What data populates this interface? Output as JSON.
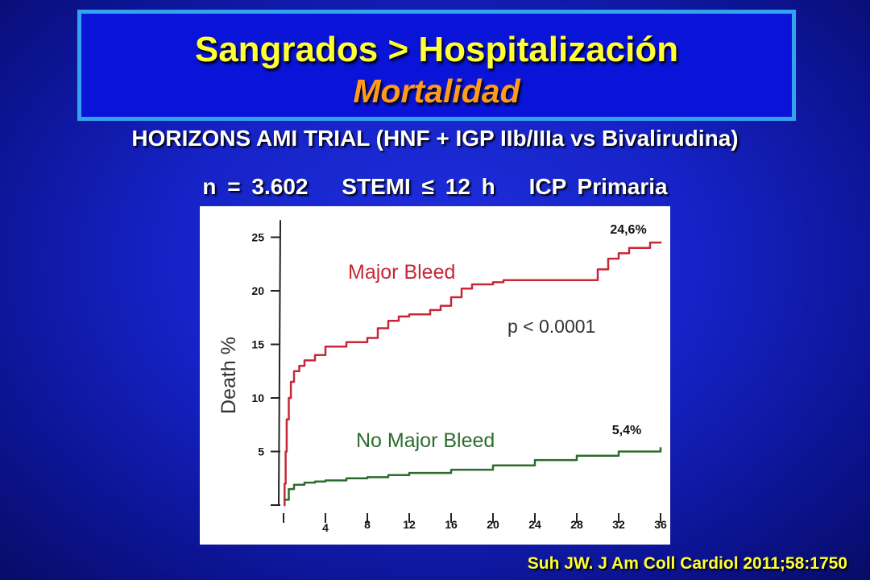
{
  "title": {
    "line1": "Sangrados > Hospitalización",
    "line2": "Mortalidad"
  },
  "subtitle": {
    "trial": "HORIZONS AMI TRIAL (HNF + IGP IIb/IIIa vs Bivalirudina)",
    "items": [
      "n = 3.602",
      "STEMI ≤ 12 h",
      "ICP Primaria"
    ]
  },
  "citation": "Suh JW. J Am Coll Cardiol 2011;58:1750",
  "colors": {
    "major_bleed": "#c62838",
    "no_major_bleed": "#2e6b2e",
    "title_yellow": "#ffff33",
    "title_orange": "#ff9a1c"
  },
  "chart_data": {
    "type": "line",
    "ylabel": "Death  %",
    "xlim": [
      0,
      36
    ],
    "ylim": [
      0,
      26
    ],
    "x_ticks": [
      4,
      8,
      12,
      16,
      20,
      24,
      28,
      32,
      36
    ],
    "y_ticks": [
      5,
      10,
      15,
      20,
      25
    ],
    "annotation": "p < 0.0001",
    "series": [
      {
        "name": "Major Bleed",
        "end_label": "24,6%",
        "x": [
          0,
          0.1,
          0.2,
          0.3,
          0.5,
          0.7,
          1,
          1.5,
          2,
          3,
          4,
          5,
          6,
          7,
          8,
          9,
          10,
          11,
          12,
          13,
          14,
          15,
          16,
          17,
          18,
          19,
          20,
          21,
          22,
          23,
          24,
          26,
          28,
          30,
          31,
          32,
          33,
          34,
          35,
          36
        ],
        "y": [
          0,
          2,
          5,
          8,
          10,
          11.5,
          12.5,
          13,
          13.5,
          14,
          14.8,
          14.8,
          15.2,
          15.2,
          15.6,
          16.5,
          17.2,
          17.6,
          17.8,
          17.8,
          18.2,
          18.6,
          19.4,
          20.2,
          20.6,
          20.6,
          20.8,
          21,
          21,
          21,
          21,
          21,
          21,
          22,
          23,
          23.5,
          24,
          24,
          24.5,
          24.6
        ]
      },
      {
        "name": "No Major Bleed",
        "end_label": "5,4%",
        "x": [
          0,
          0.5,
          1,
          2,
          3,
          4,
          6,
          8,
          10,
          12,
          16,
          20,
          24,
          28,
          32,
          36
        ],
        "y": [
          0.5,
          1.5,
          1.9,
          2.1,
          2.2,
          2.3,
          2.5,
          2.6,
          2.8,
          3,
          3.3,
          3.7,
          4.2,
          4.6,
          5,
          5.4
        ]
      }
    ]
  }
}
